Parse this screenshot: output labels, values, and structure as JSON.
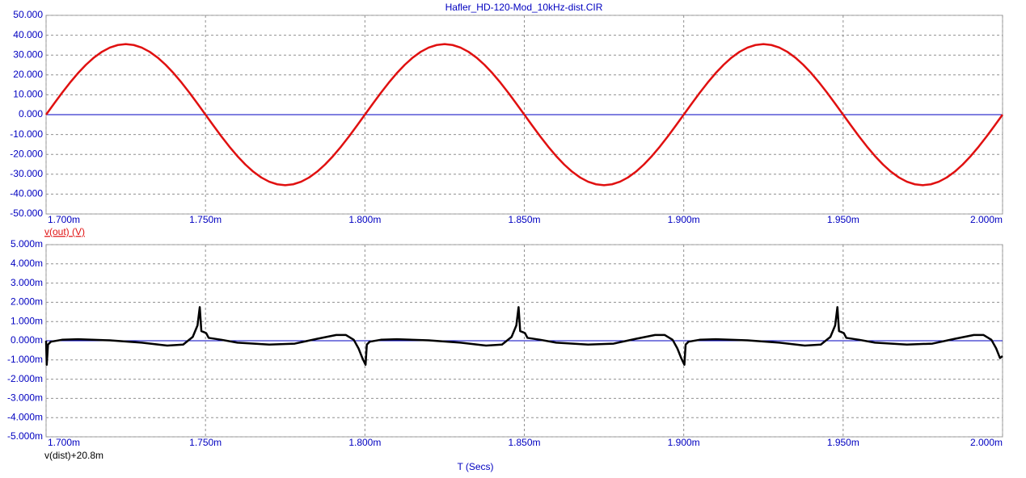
{
  "chart_data": [
    {
      "type": "line",
      "title": "Hafler_HD-120-Mod_10kHz-dist.CIR",
      "xlim": [
        1.7,
        2.0
      ],
      "xticks": [
        {
          "value": 1.7,
          "label": "1.700m"
        },
        {
          "value": 1.75,
          "label": "1.750m"
        },
        {
          "value": 1.8,
          "label": "1.800m"
        },
        {
          "value": 1.85,
          "label": "1.850m"
        },
        {
          "value": 1.9,
          "label": "1.900m"
        },
        {
          "value": 1.95,
          "label": "1.950m"
        },
        {
          "value": 2.0,
          "label": "2.000m"
        }
      ],
      "ylim": [
        -50,
        50
      ],
      "yticks": [
        {
          "value": 50,
          "label": "50.000"
        },
        {
          "value": 40,
          "label": "40.000"
        },
        {
          "value": 30,
          "label": "30.000"
        },
        {
          "value": 20,
          "label": "20.000"
        },
        {
          "value": 10,
          "label": "10.000"
        },
        {
          "value": 0,
          "label": "0.000"
        },
        {
          "value": -10,
          "label": "-10.000"
        },
        {
          "value": -20,
          "label": "-20.000"
        },
        {
          "value": -30,
          "label": "-30.000"
        },
        {
          "value": -40,
          "label": "-40.000"
        },
        {
          "value": -50,
          "label": "-50.000"
        }
      ],
      "grid": true,
      "series": [
        {
          "name": "v(out) (V)",
          "color": "#e01010",
          "x": [
            1.7,
            1.7025,
            1.705,
            1.7075,
            1.71,
            1.7125,
            1.715,
            1.7175,
            1.72,
            1.7225,
            1.725,
            1.7275,
            1.73,
            1.7325,
            1.735,
            1.7375,
            1.74,
            1.7425,
            1.745,
            1.7475,
            1.75,
            1.7525,
            1.755,
            1.7575,
            1.76,
            1.7625,
            1.765,
            1.7675,
            1.77,
            1.7725,
            1.775,
            1.7775,
            1.78,
            1.7825,
            1.785,
            1.7875,
            1.79,
            1.7925,
            1.795,
            1.7975,
            1.8,
            1.8025,
            1.805,
            1.8075,
            1.81,
            1.8125,
            1.815,
            1.8175,
            1.82,
            1.8225,
            1.825,
            1.8275,
            1.83,
            1.8325,
            1.835,
            1.8375,
            1.84,
            1.8425,
            1.845,
            1.8475,
            1.85,
            1.8525,
            1.855,
            1.8575,
            1.86,
            1.8625,
            1.865,
            1.8675,
            1.87,
            1.8725,
            1.875,
            1.8775,
            1.88,
            1.8825,
            1.885,
            1.8875,
            1.89,
            1.8925,
            1.895,
            1.8975,
            1.9,
            1.9025,
            1.905,
            1.9075,
            1.91,
            1.9125,
            1.915,
            1.9175,
            1.92,
            1.9225,
            1.925,
            1.9275,
            1.93,
            1.9325,
            1.935,
            1.9375,
            1.94,
            1.9425,
            1.945,
            1.9475,
            1.95,
            1.9525,
            1.955,
            1.9575,
            1.96,
            1.9625,
            1.965,
            1.9675,
            1.97,
            1.9725,
            1.975,
            1.9775,
            1.98,
            1.9825,
            1.985,
            1.9875,
            1.99,
            1.9925,
            1.995,
            1.9975,
            2.0
          ],
          "values": [
            0,
            5.55,
            10.97,
            16.12,
            20.87,
            25.1,
            28.72,
            31.63,
            33.76,
            35.06,
            35.5,
            35.06,
            33.76,
            31.63,
            28.72,
            25.1,
            20.87,
            16.12,
            10.97,
            5.55,
            0,
            -5.55,
            -10.97,
            -16.12,
            -20.87,
            -25.1,
            -28.72,
            -31.63,
            -33.76,
            -35.06,
            -35.5,
            -35.06,
            -33.76,
            -31.63,
            -28.72,
            -25.1,
            -20.87,
            -16.12,
            -10.97,
            -5.55,
            0,
            5.55,
            10.97,
            16.12,
            20.87,
            25.1,
            28.72,
            31.63,
            33.76,
            35.06,
            35.5,
            35.06,
            33.76,
            31.63,
            28.72,
            25.1,
            20.87,
            16.12,
            10.97,
            5.55,
            0,
            -5.55,
            -10.97,
            -16.12,
            -20.87,
            -25.1,
            -28.72,
            -31.63,
            -33.76,
            -35.06,
            -35.5,
            -35.06,
            -33.76,
            -31.63,
            -28.72,
            -25.1,
            -20.87,
            -16.12,
            -10.97,
            -5.55,
            0,
            5.55,
            10.97,
            16.12,
            20.87,
            25.1,
            28.72,
            31.63,
            33.76,
            35.06,
            35.5,
            35.06,
            33.76,
            31.63,
            28.72,
            25.1,
            20.87,
            16.12,
            10.97,
            5.55,
            0,
            -5.55,
            -10.97,
            -16.12,
            -20.87,
            -25.1,
            -28.72,
            -31.63,
            -33.76,
            -35.06,
            -35.5,
            -35.06,
            -33.76,
            -31.63,
            -28.72,
            -25.1,
            -20.87,
            -16.12,
            -10.97,
            -5.55,
            0
          ]
        }
      ]
    },
    {
      "type": "line",
      "x_label": "T (Secs)",
      "xlim": [
        1.7,
        2.0
      ],
      "xticks": [
        {
          "value": 1.7,
          "label": "1.700m"
        },
        {
          "value": 1.75,
          "label": "1.750m"
        },
        {
          "value": 1.8,
          "label": "1.800m"
        },
        {
          "value": 1.85,
          "label": "1.850m"
        },
        {
          "value": 1.9,
          "label": "1.900m"
        },
        {
          "value": 1.95,
          "label": "1.950m"
        },
        {
          "value": 2.0,
          "label": "2.000m"
        }
      ],
      "ylim": [
        -5,
        5
      ],
      "yticks": [
        {
          "value": 5,
          "label": "5.000m"
        },
        {
          "value": 4,
          "label": "4.000m"
        },
        {
          "value": 3,
          "label": "3.000m"
        },
        {
          "value": 2,
          "label": "2.000m"
        },
        {
          "value": 1,
          "label": "1.000m"
        },
        {
          "value": 0,
          "label": "0.000m"
        },
        {
          "value": -1,
          "label": "-1.000m"
        },
        {
          "value": -2,
          "label": "-2.000m"
        },
        {
          "value": -3,
          "label": "-3.000m"
        },
        {
          "value": -4,
          "label": "-4.000m"
        },
        {
          "value": -5,
          "label": "-5.000m"
        }
      ],
      "grid": true,
      "series": [
        {
          "name": "v(dist)+20.8m",
          "color": "#000000",
          "x": [
            1.7,
            1.7002,
            1.7006,
            1.7015,
            1.705,
            1.71,
            1.72,
            1.73,
            1.738,
            1.743,
            1.746,
            1.7475,
            1.7482,
            1.7487,
            1.7495,
            1.7502,
            1.751,
            1.755,
            1.76,
            1.77,
            1.778,
            1.785,
            1.791,
            1.794,
            1.7965,
            1.798,
            1.7992,
            1.8002,
            1.8006,
            1.8015,
            1.805,
            1.81,
            1.82,
            1.83,
            1.838,
            1.843,
            1.846,
            1.8475,
            1.8482,
            1.8487,
            1.8495,
            1.8502,
            1.851,
            1.855,
            1.86,
            1.87,
            1.878,
            1.885,
            1.891,
            1.894,
            1.8965,
            1.898,
            1.8992,
            1.9002,
            1.9006,
            1.9015,
            1.905,
            1.91,
            1.92,
            1.93,
            1.938,
            1.943,
            1.946,
            1.9475,
            1.9482,
            1.9487,
            1.9495,
            1.9502,
            1.951,
            1.955,
            1.96,
            1.97,
            1.978,
            1.985,
            1.991,
            1.994,
            1.9965,
            1.998,
            1.9992,
            2.0
          ],
          "values": [
            0,
            -1.25,
            -0.2,
            -0.05,
            0.05,
            0.08,
            0.02,
            -0.1,
            -0.25,
            -0.2,
            0.2,
            0.8,
            1.75,
            0.5,
            0.45,
            0.4,
            0.15,
            0.05,
            -0.1,
            -0.2,
            -0.15,
            0.1,
            0.3,
            0.3,
            0.05,
            -0.4,
            -0.9,
            -1.25,
            -0.2,
            -0.05,
            0.05,
            0.08,
            0.02,
            -0.1,
            -0.25,
            -0.2,
            0.2,
            0.8,
            1.75,
            0.5,
            0.45,
            0.4,
            0.15,
            0.05,
            -0.1,
            -0.2,
            -0.15,
            0.1,
            0.3,
            0.3,
            0.05,
            -0.4,
            -0.9,
            -1.25,
            -0.2,
            -0.05,
            0.05,
            0.08,
            0.02,
            -0.1,
            -0.25,
            -0.2,
            0.2,
            0.8,
            1.75,
            0.5,
            0.45,
            0.4,
            0.15,
            0.05,
            -0.1,
            -0.2,
            -0.15,
            0.1,
            0.3,
            0.3,
            0.05,
            -0.4,
            -0.9,
            -0.8
          ]
        }
      ]
    }
  ]
}
